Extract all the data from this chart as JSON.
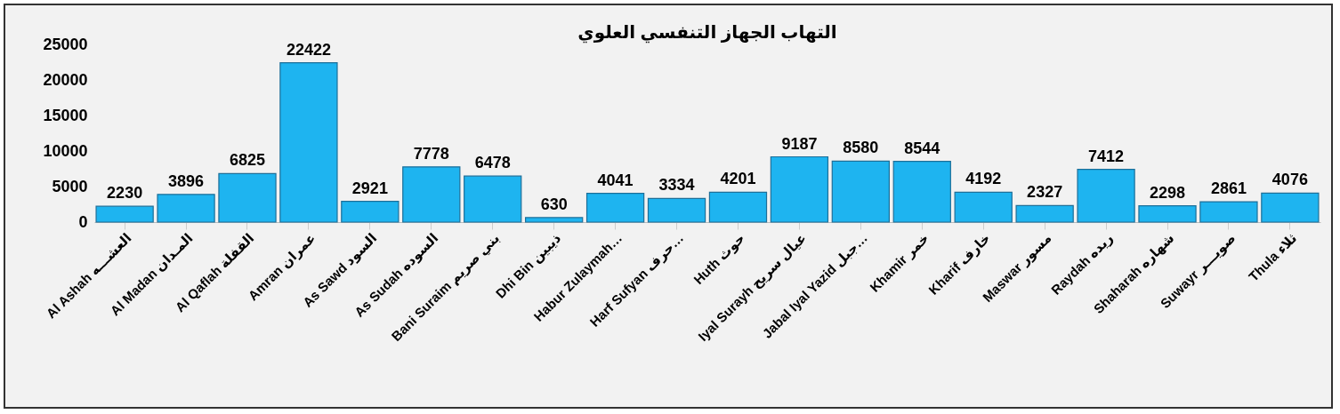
{
  "chart_data": {
    "type": "bar",
    "title": "التهاب الجهاز التنفسي العلوي",
    "categories": [
      "Al Ashah العشـــه",
      "Al Madan المـدان",
      "Al Qaflah القفلة",
      "Amran عمران",
      "As Sawd السود",
      "As Sudah السوده",
      "Bani Suraim بني صريم",
      "Dhi Bin ذيبين",
      "Habur Zulaymah…",
      "Harf Sufyan  حرف…",
      "Huth حوث",
      "Iyal Surayh عيال سريح",
      "Jabal Iyal Yazid  جبل…",
      "Khamir خمر",
      "Kharif خارف",
      "Maswar مسور",
      "Raydah ريده",
      "Shaharah شهاره",
      "Suwayr صويـــر",
      "Thula ثلاء"
    ],
    "values": [
      2230,
      3896,
      6825,
      22422,
      2921,
      7778,
      6478,
      630,
      4041,
      3334,
      4201,
      9187,
      8580,
      8544,
      4192,
      2327,
      7412,
      2298,
      2861,
      4076
    ],
    "color": "#1eb4f0",
    "ylim": [
      0,
      25000
    ],
    "yticks": [
      0,
      5000,
      10000,
      15000,
      20000,
      25000
    ],
    "data_labels": true,
    "grid": false
  }
}
